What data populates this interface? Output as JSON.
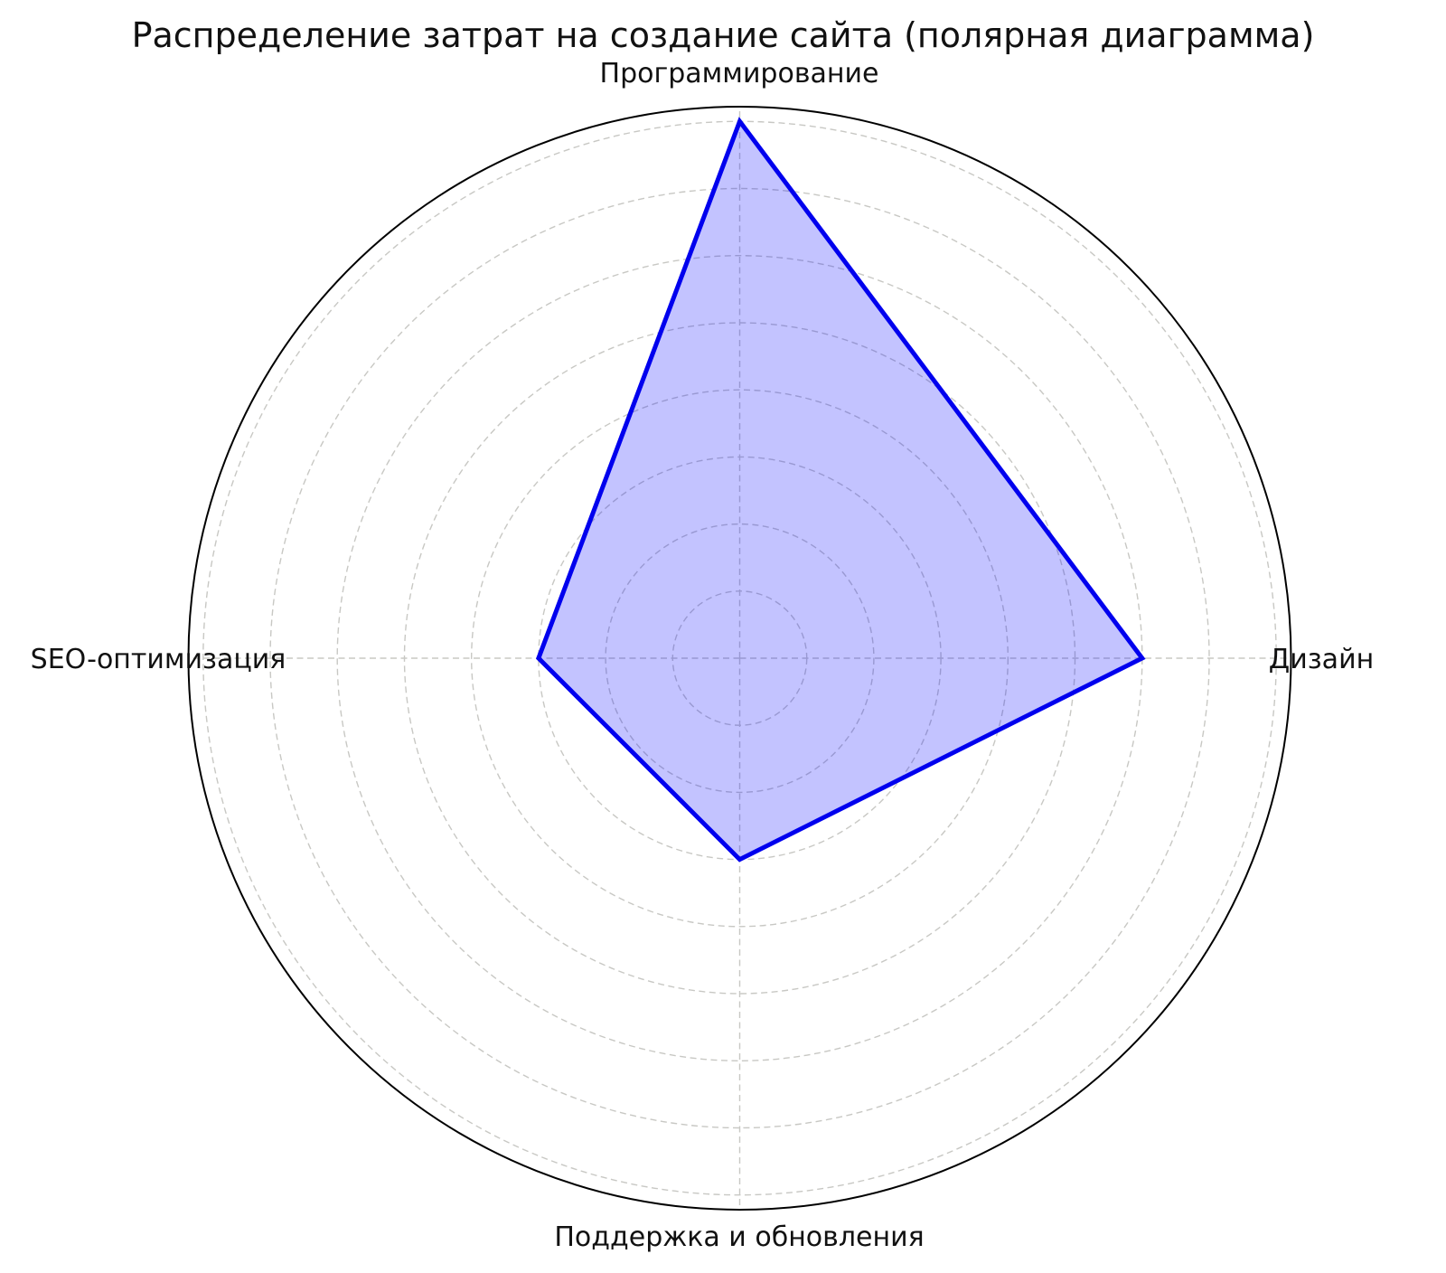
{
  "title": "Распределение затрат на создание сайта (полярная диаграмма)",
  "chart_data": {
    "type": "radar",
    "title": "Распределение затрат на создание сайта (полярная диаграмма)",
    "categories": [
      "Программирование",
      "Дизайн",
      "Поддержка и обновления",
      "SEO-оптимизация"
    ],
    "values": [
      40,
      30,
      15,
      15
    ],
    "angles_deg": [
      90,
      0,
      270,
      180
    ],
    "r_ticks": [
      5,
      10,
      15,
      20,
      25,
      30,
      35,
      40
    ],
    "r_max": 41.1,
    "r_tick_labels_visible": false,
    "grid": "dashed concentric circles with dashed cross axes",
    "legend": "none",
    "colors": {
      "line": "#0000ee",
      "fill": "rgba(0, 0, 255, 0.235)",
      "grid": "#c8c8c4",
      "outline": "#000000",
      "text": "#111111"
    }
  }
}
